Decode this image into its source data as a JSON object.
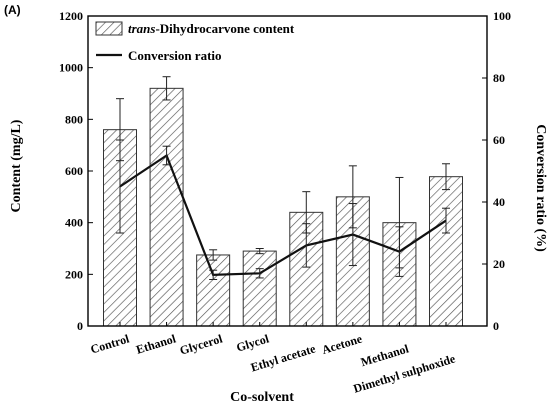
{
  "chart_data": {
    "type": "bar",
    "panel_label": "(A)",
    "categories": [
      "Control",
      "Ethanol",
      "Glycerol",
      "Glycol",
      "Ethyl acetate",
      "Acetone",
      "Methanol",
      "Dimethyl sulphoxide"
    ],
    "series": [
      {
        "name": "trans-Dihydrocarvone content",
        "name_italic": "trans",
        "name_rest": "-Dihydrocarvone content",
        "type": "bar",
        "axis": "left",
        "values": [
          760,
          920,
          275,
          290,
          440,
          500,
          400,
          578
        ],
        "errors": [
          120,
          45,
          20,
          10,
          80,
          120,
          175,
          50
        ],
        "pattern": "hatched"
      },
      {
        "name": "Conversion ratio",
        "type": "line",
        "axis": "right",
        "values": [
          45,
          55,
          16.5,
          17,
          26,
          29.5,
          24,
          34
        ],
        "errors": [
          15,
          3,
          1.5,
          1.5,
          7,
          10,
          8,
          4
        ]
      }
    ],
    "xlabel": "Co-solvent",
    "ylabel": "Content (mg/L)",
    "y2label": "Conversion ratio (%)",
    "ylim": [
      0,
      1200
    ],
    "y2lim": [
      0,
      100
    ],
    "yticks": [
      0,
      200,
      400,
      600,
      800,
      1000,
      1200
    ],
    "y2ticks": [
      0,
      20,
      40,
      60,
      80,
      100
    ],
    "grid": false,
    "legend_position": "top-left"
  }
}
